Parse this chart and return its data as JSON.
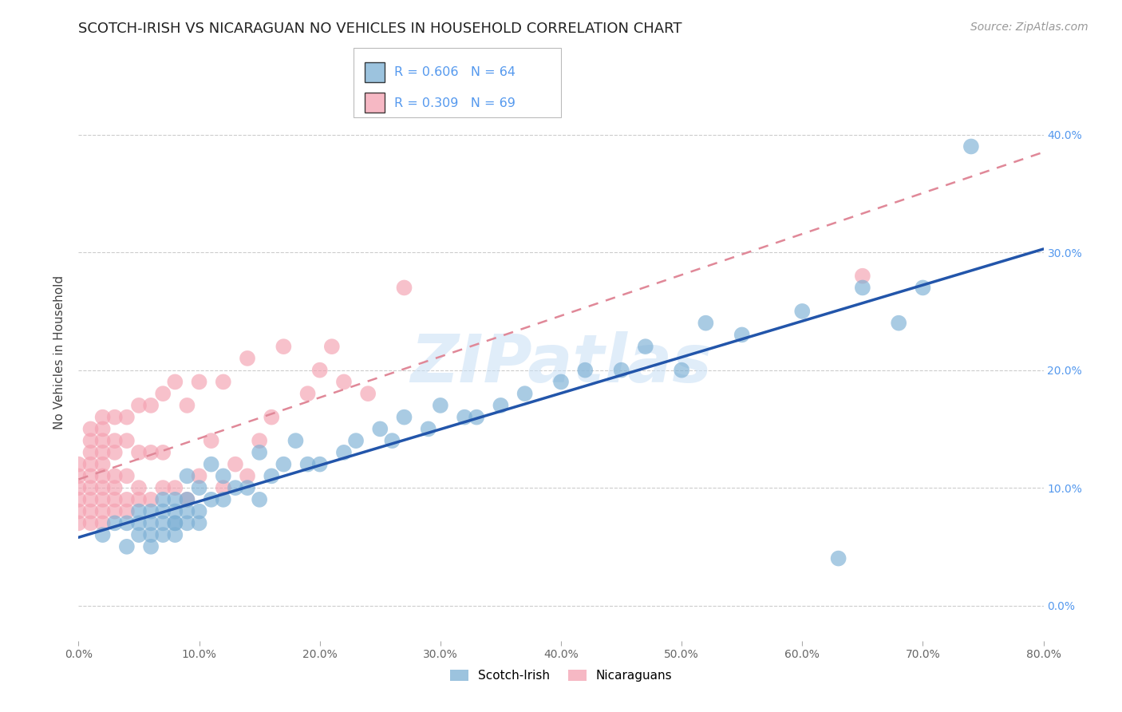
{
  "title": "SCOTCH-IRISH VS NICARAGUAN NO VEHICLES IN HOUSEHOLD CORRELATION CHART",
  "source": "Source: ZipAtlas.com",
  "ylabel": "No Vehicles in Household",
  "xlim": [
    0.0,
    0.8
  ],
  "ylim": [
    -0.03,
    0.46
  ],
  "ytick_vals": [
    0.0,
    0.1,
    0.2,
    0.3,
    0.4
  ],
  "ytick_labels": [
    "0.0%",
    "10.0%",
    "20.0%",
    "30.0%",
    "40.0%"
  ],
  "xtick_vals": [
    0.0,
    0.1,
    0.2,
    0.3,
    0.4,
    0.5,
    0.6,
    0.7,
    0.8
  ],
  "xtick_labels": [
    "0.0%",
    "10.0%",
    "20.0%",
    "30.0%",
    "40.0%",
    "50.0%",
    "60.0%",
    "70.0%",
    "80.0%"
  ],
  "scotch_irish_R": 0.606,
  "scotch_irish_N": 64,
  "nicaraguan_R": 0.309,
  "nicaraguan_N": 69,
  "scotch_irish_color": "#7BAFD4",
  "nicaraguan_color": "#F4A0B0",
  "trend_scotch_irish_color": "#2255AA",
  "trend_nicaraguan_color": "#E08898",
  "background_color": "#FFFFFF",
  "grid_color": "#CCCCCC",
  "title_fontsize": 13,
  "axis_label_fontsize": 11,
  "tick_fontsize": 10,
  "legend_fontsize": 12,
  "source_fontsize": 10,
  "scotch_irish_x": [
    0.02,
    0.03,
    0.04,
    0.04,
    0.05,
    0.05,
    0.05,
    0.06,
    0.06,
    0.06,
    0.06,
    0.07,
    0.07,
    0.07,
    0.07,
    0.08,
    0.08,
    0.08,
    0.08,
    0.08,
    0.09,
    0.09,
    0.09,
    0.09,
    0.1,
    0.1,
    0.1,
    0.11,
    0.11,
    0.12,
    0.12,
    0.13,
    0.14,
    0.15,
    0.15,
    0.16,
    0.17,
    0.18,
    0.19,
    0.2,
    0.22,
    0.23,
    0.25,
    0.26,
    0.27,
    0.29,
    0.3,
    0.32,
    0.33,
    0.35,
    0.37,
    0.4,
    0.42,
    0.45,
    0.47,
    0.5,
    0.52,
    0.55,
    0.6,
    0.63,
    0.65,
    0.68,
    0.7,
    0.74
  ],
  "scotch_irish_y": [
    0.06,
    0.07,
    0.05,
    0.07,
    0.06,
    0.07,
    0.08,
    0.05,
    0.06,
    0.07,
    0.08,
    0.06,
    0.07,
    0.08,
    0.09,
    0.06,
    0.07,
    0.07,
    0.08,
    0.09,
    0.07,
    0.08,
    0.09,
    0.11,
    0.07,
    0.08,
    0.1,
    0.09,
    0.12,
    0.09,
    0.11,
    0.1,
    0.1,
    0.09,
    0.13,
    0.11,
    0.12,
    0.14,
    0.12,
    0.12,
    0.13,
    0.14,
    0.15,
    0.14,
    0.16,
    0.15,
    0.17,
    0.16,
    0.16,
    0.17,
    0.18,
    0.19,
    0.2,
    0.2,
    0.22,
    0.2,
    0.24,
    0.23,
    0.25,
    0.04,
    0.27,
    0.24,
    0.27,
    0.39
  ],
  "nicaraguan_x": [
    0.0,
    0.0,
    0.0,
    0.0,
    0.0,
    0.0,
    0.01,
    0.01,
    0.01,
    0.01,
    0.01,
    0.01,
    0.01,
    0.01,
    0.01,
    0.02,
    0.02,
    0.02,
    0.02,
    0.02,
    0.02,
    0.02,
    0.02,
    0.02,
    0.02,
    0.03,
    0.03,
    0.03,
    0.03,
    0.03,
    0.03,
    0.03,
    0.04,
    0.04,
    0.04,
    0.04,
    0.04,
    0.05,
    0.05,
    0.05,
    0.05,
    0.06,
    0.06,
    0.06,
    0.07,
    0.07,
    0.07,
    0.08,
    0.08,
    0.09,
    0.09,
    0.1,
    0.1,
    0.11,
    0.12,
    0.12,
    0.13,
    0.14,
    0.14,
    0.15,
    0.16,
    0.17,
    0.19,
    0.2,
    0.21,
    0.22,
    0.24,
    0.27,
    0.65
  ],
  "nicaraguan_y": [
    0.07,
    0.08,
    0.09,
    0.1,
    0.11,
    0.12,
    0.07,
    0.08,
    0.09,
    0.1,
    0.11,
    0.12,
    0.13,
    0.14,
    0.15,
    0.07,
    0.08,
    0.09,
    0.1,
    0.11,
    0.12,
    0.13,
    0.14,
    0.15,
    0.16,
    0.08,
    0.09,
    0.1,
    0.11,
    0.13,
    0.14,
    0.16,
    0.08,
    0.09,
    0.11,
    0.14,
    0.16,
    0.09,
    0.1,
    0.13,
    0.17,
    0.09,
    0.13,
    0.17,
    0.1,
    0.13,
    0.18,
    0.1,
    0.19,
    0.09,
    0.17,
    0.11,
    0.19,
    0.14,
    0.1,
    0.19,
    0.12,
    0.11,
    0.21,
    0.14,
    0.16,
    0.22,
    0.18,
    0.2,
    0.22,
    0.19,
    0.18,
    0.27,
    0.28
  ]
}
